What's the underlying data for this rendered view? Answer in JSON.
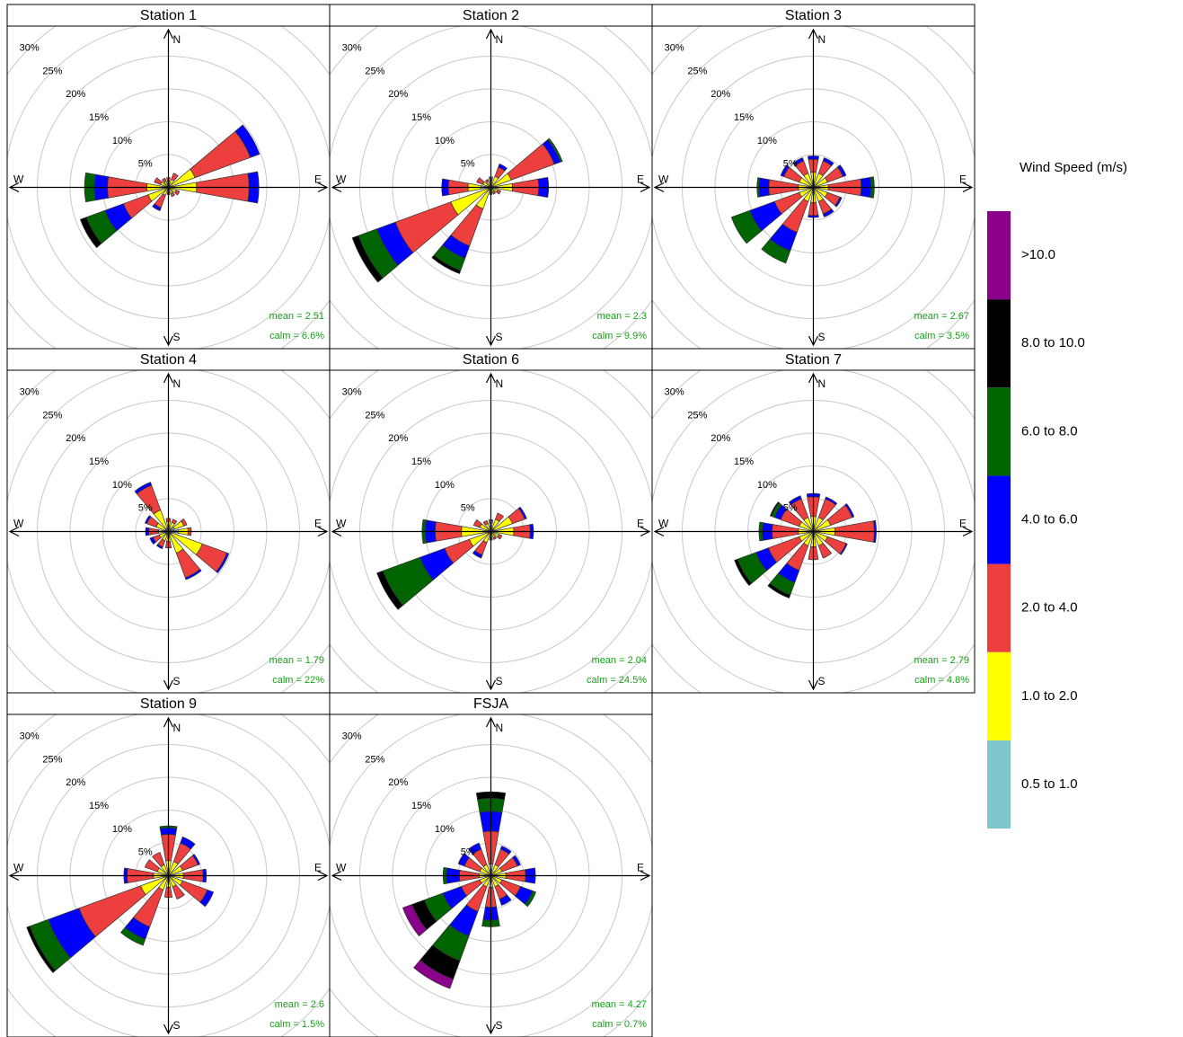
{
  "legend": {
    "title": "Wind Speed (m/s)",
    "bins": [
      {
        "name": "0.5 to 1.0",
        "color": "#7fc5cc"
      },
      {
        "name": "1.0 to 2.0",
        "color": "#ffff00"
      },
      {
        "name": "2.0 to 4.0",
        "color": "#ee3f3f"
      },
      {
        "name": "4.0 to 6.0",
        "color": "#0000ff"
      },
      {
        "name": "6.0 to 8.0",
        "color": "#006400"
      },
      {
        "name": "8.0 to 10.0",
        "color": "#000000"
      },
      {
        "name": ">10.0",
        "color": "#8b008b"
      }
    ]
  },
  "axis": {
    "rlim": [
      0,
      30
    ],
    "rticks": [
      {
        "value": 5,
        "label": "5%"
      },
      {
        "value": 10,
        "label": "10%"
      },
      {
        "value": 15,
        "label": "15%"
      },
      {
        "value": 20,
        "label": "20%"
      },
      {
        "value": 25,
        "label": "25%"
      },
      {
        "value": 30,
        "label": "30%"
      }
    ],
    "compass": [
      "N",
      "E",
      "S",
      "W"
    ]
  },
  "chart_data": [
    {
      "type": "windrose",
      "title": "Station 1",
      "mean_label": "mean = 2.51",
      "calm_label": "calm = 6.6%",
      "directions": [
        0,
        30,
        60,
        90,
        120,
        150,
        180,
        210,
        240,
        270,
        300,
        330
      ],
      "values": [
        [
          0.3,
          0.7,
          0.5,
          0,
          0,
          0,
          0
        ],
        [
          0.3,
          1,
          1,
          0,
          0,
          0,
          0
        ],
        [
          0.3,
          4,
          9,
          1.5,
          0,
          0,
          0
        ],
        [
          0.3,
          4,
          8,
          1.5,
          0,
          0,
          0
        ],
        [
          0.3,
          1,
          0.5,
          0,
          0,
          0,
          0
        ],
        [
          0.3,
          0.7,
          0.5,
          0,
          0,
          0,
          0
        ],
        [
          0.3,
          0.5,
          0.3,
          0,
          0,
          0,
          0
        ],
        [
          0.3,
          1,
          2,
          0.5,
          0,
          0,
          0
        ],
        [
          0.3,
          3,
          4,
          3,
          3,
          1,
          0
        ],
        [
          0.3,
          3,
          6,
          2,
          1.5,
          0,
          0
        ],
        [
          0.3,
          1,
          1,
          0,
          0,
          0,
          0
        ],
        [
          0.3,
          0.7,
          0.5,
          0,
          0,
          0,
          0
        ]
      ]
    },
    {
      "type": "windrose",
      "title": "Station 2",
      "mean_label": "mean = 2.3",
      "calm_label": "calm = 9.9%",
      "directions": [
        0,
        30,
        60,
        90,
        120,
        150,
        180,
        210,
        240,
        270,
        300,
        330
      ],
      "values": [
        [
          0.3,
          0.8,
          0.5,
          0,
          0,
          0,
          0
        ],
        [
          0.3,
          1.5,
          1.5,
          0.5,
          0,
          0,
          0
        ],
        [
          0.3,
          3,
          7,
          1,
          0.3,
          0,
          0
        ],
        [
          0.3,
          3,
          4,
          1.5,
          0,
          0,
          0
        ],
        [
          0.3,
          0.8,
          0.5,
          0,
          0,
          0,
          0
        ],
        [
          0.3,
          0.5,
          0.3,
          0,
          0,
          0,
          0
        ],
        [
          0.3,
          0.5,
          0.3,
          0,
          0,
          0,
          0
        ],
        [
          0.5,
          3,
          6,
          2,
          2,
          0.5,
          0
        ],
        [
          0.5,
          6,
          9,
          3,
          3,
          1,
          0
        ],
        [
          1.5,
          2,
          3,
          1,
          0,
          0,
          0
        ],
        [
          0.3,
          1,
          1,
          0,
          0,
          0,
          0
        ],
        [
          0.3,
          0.7,
          0.3,
          0,
          0,
          0,
          0
        ]
      ]
    },
    {
      "type": "windrose",
      "title": "Station 3",
      "mean_label": "mean = 2.67",
      "calm_label": "calm = 3.5%",
      "directions": [
        0,
        30,
        60,
        90,
        120,
        150,
        180,
        210,
        240,
        270,
        300,
        330
      ],
      "values": [
        [
          0.3,
          2,
          2,
          0.5,
          0,
          0,
          0
        ],
        [
          0.3,
          2,
          2,
          0.5,
          0,
          0,
          0
        ],
        [
          0.3,
          2,
          2.5,
          0.5,
          0,
          0,
          0
        ],
        [
          0.3,
          2,
          5,
          1.5,
          0.5,
          0,
          0
        ],
        [
          0.3,
          2,
          2,
          0.3,
          0,
          0,
          0
        ],
        [
          0.3,
          2,
          2,
          0.5,
          0,
          0,
          0
        ],
        [
          0.3,
          2,
          2,
          0.3,
          0,
          0,
          0
        ],
        [
          0.3,
          2,
          5,
          3,
          2,
          0,
          0
        ],
        [
          0.3,
          2,
          4,
          4,
          3,
          0,
          0
        ],
        [
          0.3,
          2,
          4.5,
          1.5,
          0.3,
          0,
          0
        ],
        [
          0.3,
          2,
          2.5,
          0.5,
          0,
          0,
          0
        ],
        [
          0.3,
          2,
          2,
          0.5,
          0,
          0,
          0
        ]
      ]
    },
    {
      "type": "windrose",
      "title": "Station 4",
      "mean_label": "mean = 1.79",
      "calm_label": "calm = 22%",
      "directions": [
        0,
        30,
        60,
        90,
        120,
        150,
        180,
        210,
        240,
        270,
        300,
        330
      ],
      "values": [
        [
          0.5,
          1,
          0.5,
          0,
          0,
          0,
          0
        ],
        [
          0.5,
          1,
          0.5,
          0,
          0,
          0,
          0
        ],
        [
          1,
          1.5,
          0.5,
          0,
          0,
          0,
          0
        ],
        [
          1.5,
          1.5,
          0.5,
          0,
          0,
          0,
          0
        ],
        [
          0.5,
          5,
          4,
          0.3,
          0,
          0,
          0
        ],
        [
          0.5,
          3,
          4,
          0.3,
          0,
          0,
          0
        ],
        [
          0.5,
          1,
          1,
          0,
          0,
          0,
          0
        ],
        [
          0.5,
          1,
          1,
          0.3,
          0,
          0,
          0
        ],
        [
          0.5,
          1,
          1,
          0.5,
          0,
          0,
          0
        ],
        [
          0.5,
          1,
          1.5,
          0.5,
          0,
          0,
          0
        ],
        [
          0.5,
          1.5,
          1.5,
          0.3,
          0,
          0,
          0
        ],
        [
          0.5,
          3,
          4,
          0.5,
          0,
          0,
          0
        ]
      ]
    },
    {
      "type": "windrose",
      "title": "Station 6",
      "mean_label": "mean = 2.04",
      "calm_label": "calm = 24.5%",
      "directions": [
        0,
        30,
        60,
        90,
        120,
        150,
        180,
        210,
        240,
        270,
        300,
        330
      ],
      "values": [
        [
          0.3,
          1,
          0.5,
          0,
          0,
          0,
          0
        ],
        [
          0.5,
          1.5,
          1,
          0,
          0,
          0,
          0
        ],
        [
          0.5,
          3,
          2,
          0.3,
          0,
          0,
          0
        ],
        [
          0.5,
          3,
          2.5,
          0.5,
          0,
          0,
          0
        ],
        [
          0.3,
          1,
          0.5,
          0,
          0,
          0,
          0
        ],
        [
          0.3,
          0.7,
          0.3,
          0,
          0,
          0,
          0
        ],
        [
          0.3,
          0.7,
          0.3,
          0,
          0,
          0,
          0
        ],
        [
          0.3,
          1.5,
          2,
          0.5,
          0,
          0,
          0
        ],
        [
          0.5,
          3,
          4,
          4,
          6,
          1,
          0
        ],
        [
          0.5,
          4,
          4,
          1.5,
          0.5,
          0,
          0
        ],
        [
          0.3,
          1.5,
          1,
          0,
          0,
          0,
          0
        ],
        [
          0.3,
          1,
          0.5,
          0,
          0,
          0,
          0
        ]
      ]
    },
    {
      "type": "windrose",
      "title": "Station 7",
      "mean_label": "mean = 2.79",
      "calm_label": "calm = 4.8%",
      "directions": [
        0,
        30,
        60,
        90,
        120,
        150,
        180,
        210,
        240,
        270,
        300,
        330
      ],
      "values": [
        [
          0.3,
          2,
          3,
          0.5,
          0,
          0,
          0
        ],
        [
          0.3,
          2,
          3,
          0.3,
          0,
          0,
          0
        ],
        [
          0.3,
          2.5,
          3.5,
          0.3,
          0,
          0,
          0
        ],
        [
          0.3,
          3,
          6,
          0.3,
          0,
          0,
          0
        ],
        [
          0.3,
          2,
          3,
          0.2,
          0,
          0,
          0
        ],
        [
          0.3,
          2,
          2,
          0,
          0,
          0,
          0
        ],
        [
          0.3,
          2,
          2,
          0,
          0,
          0,
          0
        ],
        [
          0.3,
          2,
          4,
          2,
          2,
          0.5,
          0
        ],
        [
          0.3,
          2,
          5,
          2,
          3,
          0.5,
          0
        ],
        [
          0.3,
          2,
          4,
          1.5,
          0.5,
          0,
          0
        ],
        [
          0.3,
          2,
          3,
          1,
          0.5,
          0.2,
          0
        ],
        [
          0.3,
          2,
          3,
          0.5,
          0,
          0,
          0
        ]
      ]
    },
    {
      "type": "windrose",
      "title": "Station 9",
      "mean_label": "mean = 2.6",
      "calm_label": "calm = 1.5%",
      "directions": [
        0,
        30,
        60,
        90,
        120,
        150,
        180,
        210,
        240,
        270,
        300,
        330
      ],
      "values": [
        [
          0.3,
          2,
          4,
          1,
          0.3,
          0,
          0
        ],
        [
          0.3,
          2,
          3,
          1,
          0,
          0,
          0
        ],
        [
          0.3,
          2,
          2.5,
          0.3,
          0,
          0,
          0
        ],
        [
          0.3,
          2,
          3,
          0.5,
          0,
          0,
          0
        ],
        [
          0.3,
          2,
          4,
          1,
          0,
          0,
          0
        ],
        [
          0.3,
          1.5,
          2,
          0,
          0,
          0,
          0
        ],
        [
          0.3,
          1.5,
          1.5,
          0,
          0,
          0,
          0
        ],
        [
          0.3,
          2,
          6,
          2,
          1,
          0,
          0
        ],
        [
          0.5,
          4,
          10,
          5,
          3,
          0.5,
          0
        ],
        [
          0.3,
          2,
          4,
          0.5,
          0,
          0,
          0
        ],
        [
          0.3,
          1.5,
          2,
          0,
          0,
          0,
          0
        ],
        [
          0.3,
          1.5,
          2,
          0,
          0,
          0,
          0
        ]
      ]
    },
    {
      "type": "windrose",
      "title": "FSJA",
      "mean_label": "mean = 4.27",
      "calm_label": "calm = 0.7%",
      "directions": [
        0,
        30,
        60,
        90,
        120,
        150,
        180,
        210,
        240,
        270,
        300,
        330
      ],
      "values": [
        [
          0.3,
          1.5,
          5,
          3,
          2,
          1,
          0
        ],
        [
          0.3,
          1.5,
          2.5,
          0.5,
          0,
          0,
          0
        ],
        [
          0.3,
          1.5,
          2.5,
          0.5,
          0,
          0,
          0
        ],
        [
          0.3,
          2,
          3,
          1.5,
          0,
          0,
          0
        ],
        [
          0.3,
          1.5,
          3,
          2,
          0.5,
          0,
          0
        ],
        [
          0.3,
          1.5,
          2,
          1,
          0,
          0,
          0
        ],
        [
          0.3,
          1.5,
          3,
          2,
          1,
          0,
          0
        ],
        [
          0.3,
          1.5,
          4,
          4,
          4,
          3,
          1.5
        ],
        [
          0.3,
          1.5,
          3,
          3,
          3,
          2,
          1.5
        ],
        [
          0.3,
          1.5,
          3,
          2,
          0.5,
          0,
          0
        ],
        [
          0.3,
          1.5,
          2.5,
          1,
          0,
          0,
          0
        ],
        [
          0.3,
          1.5,
          2.5,
          1,
          0,
          0,
          0
        ]
      ]
    }
  ]
}
